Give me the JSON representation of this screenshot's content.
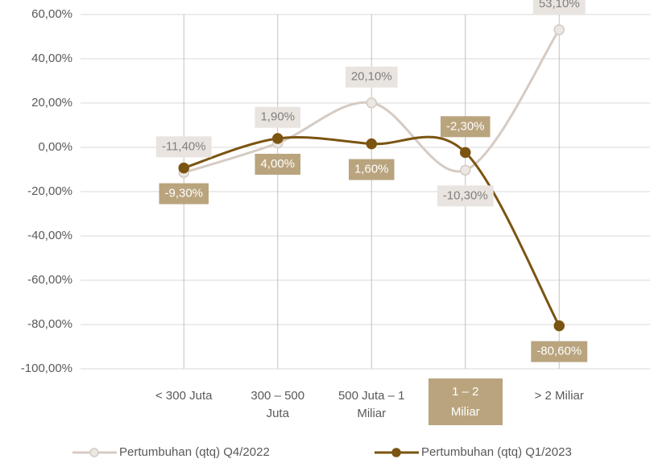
{
  "chart_data": {
    "type": "line",
    "categories": [
      "< 300 Juta",
      "300 – 500 Juta",
      "500 Juta – 1 Miliar",
      "1 – 2 Miliar",
      "> 2 Miliar"
    ],
    "highlight_category": 3,
    "series": [
      {
        "name": "Pertumbuhan (qtq) Q4/2022",
        "color": "#d5cbc3",
        "label_color": "#e9e4df",
        "label_text_color": "#808080",
        "values": [
          -11.4,
          1.9,
          20.1,
          -10.3,
          53.1
        ],
        "value_labels": [
          "-11,40%",
          "1,90%",
          "20,10%",
          "-10,30%",
          "53,10%"
        ]
      },
      {
        "name": "Pertumbuhan (qtq) Q1/2023",
        "color": "#7b5411",
        "label_color": "#b9a47e",
        "label_text_color": "#ffffff",
        "values": [
          -9.3,
          4.0,
          1.6,
          -2.3,
          -80.6
        ],
        "value_labels": [
          "-9,30%",
          "4,00%",
          "1,60%",
          "-2,30%",
          "-80,60%"
        ]
      }
    ],
    "ylim": [
      -100,
      60
    ],
    "yticks": [
      {
        "value": -100,
        "label": "-100,00%"
      },
      {
        "value": -80,
        "label": "-80,00%"
      },
      {
        "value": -60,
        "label": "-60,00%"
      },
      {
        "value": -40,
        "label": "-40,00%"
      },
      {
        "value": -20,
        "label": "-20,00%"
      },
      {
        "value": 0,
        "label": "0,00%"
      },
      {
        "value": 20,
        "label": "20,00%"
      },
      {
        "value": 40,
        "label": "40,00%"
      },
      {
        "value": 60,
        "label": "60,00%"
      }
    ],
    "grid": true,
    "smooth": true,
    "legend": "bottom"
  }
}
